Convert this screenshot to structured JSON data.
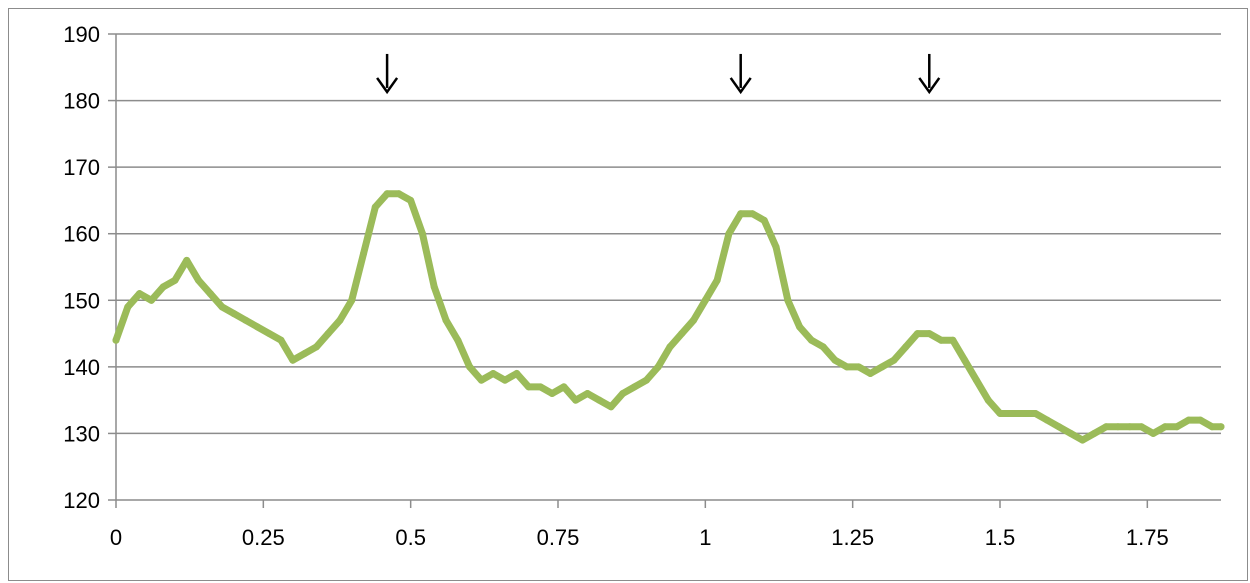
{
  "chart_data": {
    "type": "line",
    "title": "",
    "xlabel": "",
    "ylabel": "",
    "xlim": [
      0,
      1.875
    ],
    "ylim": [
      120,
      190
    ],
    "grid": "horizontal",
    "x_ticks": [
      {
        "value": 0,
        "label": "0"
      },
      {
        "value": 0.25,
        "label": "0.25"
      },
      {
        "value": 0.5,
        "label": "0.5"
      },
      {
        "value": 0.75,
        "label": "0.75"
      },
      {
        "value": 1,
        "label": "1"
      },
      {
        "value": 1.25,
        "label": "1.25"
      },
      {
        "value": 1.5,
        "label": "1.5"
      },
      {
        "value": 1.75,
        "label": "1.75"
      }
    ],
    "y_ticks": [
      {
        "value": 120,
        "label": "120"
      },
      {
        "value": 130,
        "label": "130"
      },
      {
        "value": 140,
        "label": "140"
      },
      {
        "value": 150,
        "label": "150"
      },
      {
        "value": 160,
        "label": "160"
      },
      {
        "value": 170,
        "label": "170"
      },
      {
        "value": 180,
        "label": "180"
      },
      {
        "value": 190,
        "label": "190"
      }
    ],
    "series": [
      {
        "color": "#9bbb59",
        "x": [
          0,
          0.02,
          0.04,
          0.06,
          0.08,
          0.1,
          0.12,
          0.14,
          0.16,
          0.18,
          0.2,
          0.22,
          0.24,
          0.26,
          0.28,
          0.3,
          0.32,
          0.34,
          0.36,
          0.38,
          0.4,
          0.42,
          0.44,
          0.46,
          0.48,
          0.5,
          0.52,
          0.54,
          0.56,
          0.58,
          0.6,
          0.62,
          0.64,
          0.66,
          0.68,
          0.7,
          0.72,
          0.74,
          0.76,
          0.78,
          0.8,
          0.82,
          0.84,
          0.86,
          0.88,
          0.9,
          0.92,
          0.94,
          0.96,
          0.98,
          1.0,
          1.02,
          1.04,
          1.06,
          1.08,
          1.1,
          1.12,
          1.14,
          1.16,
          1.18,
          1.2,
          1.22,
          1.24,
          1.26,
          1.28,
          1.3,
          1.32,
          1.34,
          1.36,
          1.38,
          1.4,
          1.42,
          1.44,
          1.46,
          1.48,
          1.5,
          1.52,
          1.54,
          1.56,
          1.58,
          1.6,
          1.62,
          1.64,
          1.66,
          1.68,
          1.7,
          1.72,
          1.74,
          1.76,
          1.78,
          1.8,
          1.82,
          1.84,
          1.86,
          1.875
        ],
        "values": [
          144,
          149,
          151,
          150,
          152,
          153,
          156,
          153,
          151,
          149,
          148,
          147,
          146,
          145,
          144,
          141,
          142,
          143,
          145,
          147,
          150,
          157,
          164,
          166,
          166,
          165,
          160,
          152,
          147,
          144,
          140,
          138,
          139,
          138,
          139,
          137,
          137,
          136,
          137,
          135,
          136,
          135,
          134,
          136,
          137,
          138,
          140,
          143,
          145,
          147,
          150,
          153,
          160,
          163,
          163,
          162,
          158,
          150,
          146,
          144,
          143,
          141,
          140,
          140,
          139,
          140,
          141,
          143,
          145,
          145,
          144,
          144,
          141,
          138,
          135,
          133,
          133,
          133,
          133,
          132,
          131,
          130,
          129,
          130,
          131,
          131,
          131,
          131,
          130,
          131,
          131,
          132,
          132,
          131,
          131
        ]
      }
    ],
    "annotations": [
      {
        "type": "arrow-down",
        "x": 0.46,
        "y": 184
      },
      {
        "type": "arrow-down",
        "x": 1.06,
        "y": 184
      },
      {
        "type": "arrow-down",
        "x": 1.38,
        "y": 184
      }
    ]
  }
}
